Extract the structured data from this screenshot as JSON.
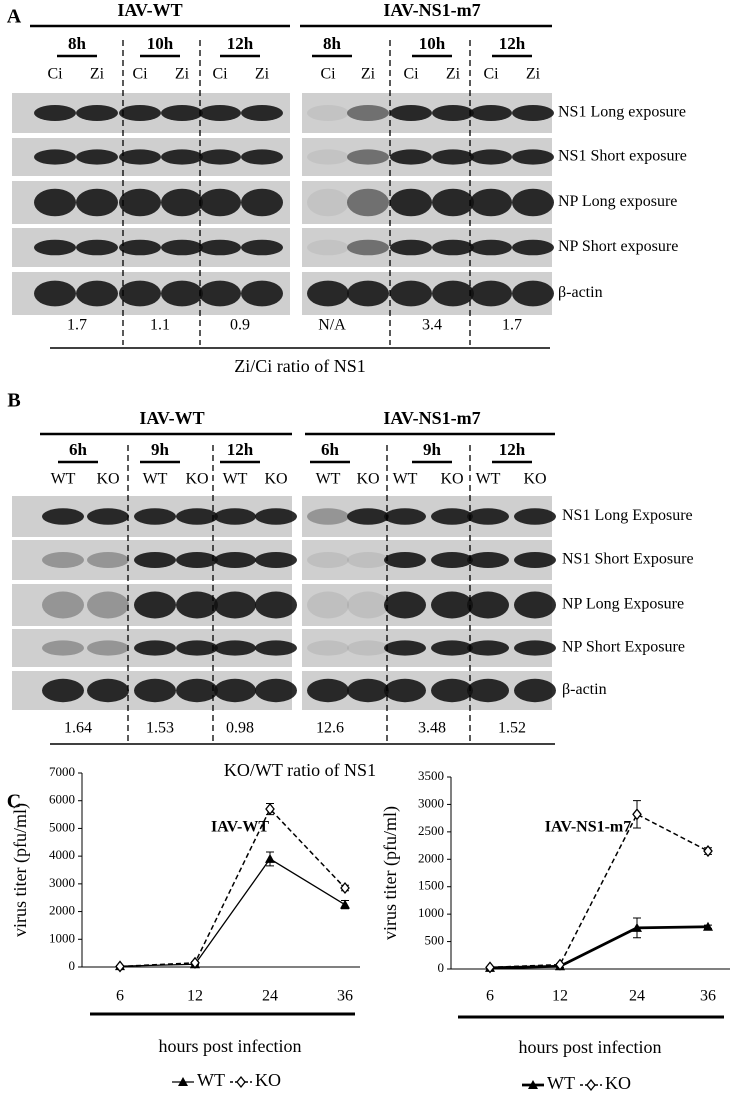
{
  "panel_a": {
    "label": "A",
    "groups": [
      {
        "title": "IAV-WT",
        "times": [
          "8h",
          "10h",
          "12h"
        ],
        "lanes": [
          "Ci",
          "Zi"
        ],
        "ratios": [
          1.7,
          1.1,
          0.9
        ]
      },
      {
        "title": "IAV-NS1-m7",
        "times": [
          "8h",
          "10h",
          "12h"
        ],
        "lanes": [
          "Ci",
          "Zi"
        ],
        "ratios": [
          "N/A",
          3.4,
          1.7
        ]
      }
    ],
    "rows": [
      "NS1 Long exposure",
      "NS1 Short exposure",
      "NP Long exposure",
      "NP Short exposure",
      "β-actin"
    ],
    "caption": "Zi/Ci ratio of NS1"
  },
  "panel_b": {
    "label": "B",
    "groups": [
      {
        "title": "IAV-WT",
        "times": [
          "6h",
          "9h",
          "12h"
        ],
        "lanes": [
          "WT",
          "KO"
        ],
        "ratios": [
          1.64,
          1.53,
          0.98
        ]
      },
      {
        "title": "IAV-NS1-m7",
        "times": [
          "6h",
          "9h",
          "12h"
        ],
        "lanes": [
          "WT",
          "KO"
        ],
        "ratios": [
          12.6,
          3.48,
          1.52
        ]
      }
    ],
    "rows": [
      "NS1 Long  Exposure",
      "NS1 Short Exposure",
      "NP  Long Exposure",
      "NP Short Exposure",
      "β-actin"
    ],
    "caption": "KO/WT ratio of NS1"
  },
  "panel_c": {
    "label": "C"
  },
  "chart_data": [
    {
      "type": "line",
      "title": "IAV-WT",
      "y_label": "virus titer (pfu/ml)",
      "x_label": "hours post infection",
      "categories": [
        "6",
        "12",
        "24",
        "36"
      ],
      "ylim": [
        0,
        7000
      ],
      "yticks": [
        0,
        1000,
        2000,
        3000,
        4000,
        5000,
        6000,
        7000
      ],
      "series": [
        {
          "name": "WT",
          "color": "#000000",
          "line_style": "solid",
          "marker": "triangle",
          "values": [
            30,
            100,
            3900,
            2250
          ],
          "errors": [
            20,
            30,
            250,
            150
          ]
        },
        {
          "name": "KO",
          "color": "#000000",
          "line_style": "dashed",
          "marker": "diamond",
          "values": [
            20,
            150,
            5700,
            2850
          ],
          "errors": [
            20,
            40,
            200,
            100
          ]
        }
      ]
    },
    {
      "type": "line",
      "title": "IAV-NS1-m7",
      "y_label": "virus titer (pfu/ml)",
      "x_label": "hours post infection",
      "categories": [
        "6",
        "12",
        "24",
        "36"
      ],
      "ylim": [
        0,
        3500
      ],
      "yticks": [
        0,
        500,
        1000,
        1500,
        2000,
        2500,
        3000,
        3500
      ],
      "series": [
        {
          "name": "WT",
          "color": "#000000",
          "line_style": "solid",
          "marker": "triangle",
          "values": [
            20,
            50,
            750,
            770
          ],
          "errors": [
            10,
            20,
            180,
            30
          ]
        },
        {
          "name": "KO",
          "color": "#000000",
          "line_style": "dashed",
          "marker": "diamond",
          "values": [
            30,
            80,
            2820,
            2150
          ],
          "errors": [
            10,
            20,
            250,
            60
          ]
        }
      ]
    }
  ]
}
